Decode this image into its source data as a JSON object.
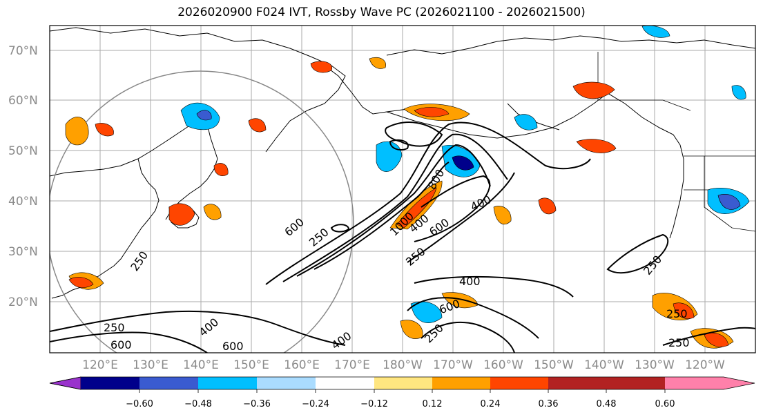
{
  "title": "2026020900 F024 IVT, Rossby Wave PC (2026021100 - 2026021500)",
  "lat_labels": [
    "70°N",
    "60°N",
    "50°N",
    "40°N",
    "30°N",
    "20°N"
  ],
  "lon_labels": [
    "120°E",
    "130°E",
    "140°E",
    "150°E",
    "160°E",
    "170°E",
    "180°W",
    "170°W",
    "160°W",
    "150°W",
    "140°W",
    "130°W",
    "120°W"
  ],
  "colorbar": {
    "colors": [
      "#9932cc",
      "#00008b",
      "#3a5bd0",
      "#00bfff",
      "#aadcff",
      "#ffffff",
      "#ffe680",
      "#ffa000",
      "#ff4500",
      "#b22222",
      "#ff80aa"
    ],
    "tick_labels": [
      "−0.60",
      "−0.48",
      "−0.36",
      "−0.24",
      "−0.12",
      "0.12",
      "0.24",
      "0.36",
      "0.48",
      "0.60"
    ]
  },
  "contour_labels": [
    "250",
    "400",
    "600",
    "800",
    "1000",
    "250",
    "400",
    "600",
    "250",
    "400",
    "600",
    "250",
    "400",
    "600",
    "250",
    "250",
    "600",
    "400",
    "250",
    "250"
  ]
}
